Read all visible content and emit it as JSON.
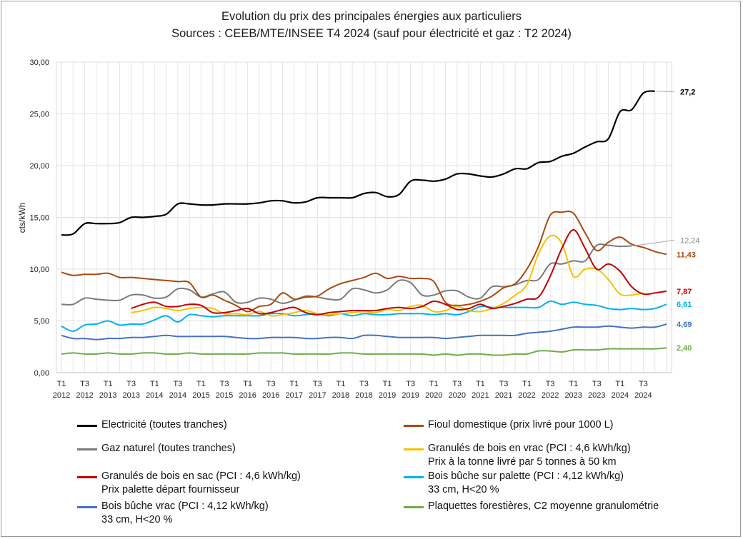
{
  "title_line1": "Evolution du prix des principales énergies aux particuliers",
  "title_line2": "Sources : CEEB/MTE/INSEE T4 2024 (sauf pour électricité et gaz : T2 2024)",
  "chart_data": {
    "type": "line",
    "ylabel": "cts/kWh",
    "ylim": [
      0,
      30
    ],
    "yticks": [
      "0,00",
      "5,00",
      "10,00",
      "15,00",
      "20,00",
      "25,00",
      "30,00"
    ],
    "grid": true,
    "x_tick_labels": [
      {
        "q": "T1",
        "y": "2012"
      },
      {
        "q": "T3",
        "y": "2012"
      },
      {
        "q": "T1",
        "y": "2013"
      },
      {
        "q": "T3",
        "y": "2013"
      },
      {
        "q": "T1",
        "y": "2014"
      },
      {
        "q": "T3",
        "y": "2014"
      },
      {
        "q": "T1",
        "y": "2015"
      },
      {
        "q": "T3",
        "y": "2015"
      },
      {
        "q": "T1",
        "y": "2016"
      },
      {
        "q": "T3",
        "y": "2016"
      },
      {
        "q": "T1",
        "y": "2017"
      },
      {
        "q": "T3",
        "y": "2017"
      },
      {
        "q": "T1",
        "y": "2018"
      },
      {
        "q": "T3",
        "y": "2018"
      },
      {
        "q": "T1",
        "y": "2019"
      },
      {
        "q": "T3",
        "y": "2019"
      },
      {
        "q": "T1",
        "y": "2020"
      },
      {
        "q": "T3",
        "y": "2020"
      },
      {
        "q": "T1",
        "y": "2021"
      },
      {
        "q": "T3",
        "y": "2021"
      },
      {
        "q": "T1",
        "y": "2022"
      },
      {
        "q": "T3",
        "y": "2022"
      },
      {
        "q": "T1",
        "y": "2023"
      },
      {
        "q": "T3",
        "y": "2023"
      },
      {
        "q": "T1",
        "y": "2024"
      },
      {
        "q": "T3",
        "y": "2024"
      }
    ],
    "series": [
      {
        "name": "Electricité (toutes tranches)",
        "color": "#000000",
        "end_label": "27,2",
        "label_color": "#000000",
        "leader": true,
        "start": 0,
        "values": [
          13.3,
          13.4,
          14.4,
          14.4,
          14.4,
          14.5,
          15.0,
          15.0,
          15.1,
          15.3,
          16.3,
          16.3,
          16.2,
          16.2,
          16.3,
          16.3,
          16.3,
          16.4,
          16.6,
          16.6,
          16.4,
          16.5,
          16.9,
          16.9,
          16.9,
          16.9,
          17.3,
          17.4,
          17.0,
          17.2,
          18.5,
          18.6,
          18.5,
          18.7,
          19.2,
          19.2,
          19.0,
          18.9,
          19.2,
          19.7,
          19.7,
          20.3,
          20.4,
          20.9,
          21.2,
          21.8,
          22.3,
          22.6,
          25.2,
          25.4,
          27.0,
          27.2
        ]
      },
      {
        "name": "Fioul domestique (prix livré pour 1000 L)",
        "color": "#a84a10",
        "end_label": "11,43",
        "label_color": "#a84a10",
        "leader": false,
        "start": 0,
        "values": [
          9.7,
          9.4,
          9.5,
          9.5,
          9.6,
          9.2,
          9.2,
          9.1,
          9.0,
          8.9,
          8.8,
          8.7,
          7.3,
          7.5,
          7.0,
          6.5,
          5.9,
          6.4,
          6.6,
          7.7,
          7.1,
          7.3,
          7.4,
          8.1,
          8.6,
          8.9,
          9.2,
          9.6,
          9.1,
          9.3,
          9.1,
          9.1,
          8.8,
          6.8,
          6.5,
          6.6,
          6.9,
          7.4,
          8.2,
          8.6,
          10.0,
          12.2,
          15.2,
          15.5,
          15.4,
          13.5,
          11.8,
          12.6,
          13.1,
          12.4,
          12.1,
          11.7,
          11.43
        ]
      },
      {
        "name": "Gaz naturel (toutes tranches)",
        "color": "#7a7a7a",
        "end_label": "12,24",
        "label_color": "#8a8a8a",
        "leader": true,
        "start": 0,
        "values": [
          6.6,
          6.6,
          7.2,
          7.1,
          7.0,
          7.0,
          7.5,
          7.5,
          7.2,
          7.3,
          8.1,
          8.0,
          7.3,
          7.6,
          7.8,
          6.8,
          6.8,
          7.2,
          7.1,
          6.7,
          7.0,
          7.4,
          7.3,
          7.1,
          7.1,
          8.1,
          8.0,
          7.7,
          8.0,
          8.9,
          8.7,
          7.5,
          7.5,
          7.9,
          7.9,
          7.3,
          7.2,
          8.3,
          8.3,
          8.5,
          8.9,
          9.0,
          10.5,
          10.5,
          10.8,
          10.8,
          12.3,
          12.3,
          12.2,
          12.24
        ]
      },
      {
        "name": "Granulés de bois en vrac (PCI : 4,6 kWh/kg)",
        "name2": "Prix à la tonne livré par 5 tonnes à 50 km",
        "color": "#f5c200",
        "end_label": "",
        "label_color": "#f5c200",
        "leader": false,
        "start": 6,
        "values": [
          5.8,
          6.0,
          6.3,
          6.2,
          6.0,
          6.2,
          6.3,
          6.2,
          5.7,
          5.7,
          5.6,
          5.9,
          5.5,
          5.6,
          5.8,
          6.0,
          5.7,
          5.6,
          5.7,
          5.8,
          5.9,
          5.8,
          6.1,
          6.0,
          6.4,
          6.5,
          5.9,
          6.0,
          6.4,
          6.0,
          5.9,
          6.2,
          6.7,
          7.5,
          8.5,
          11.5,
          13.2,
          12.5,
          9.3,
          10.0,
          10.0,
          9.0,
          7.6,
          7.5,
          7.7
        ]
      },
      {
        "name": "Granulés de bois en sac (PCI : 4,6 kWh/kg)",
        "name2": "Prix palette départ fournisseur",
        "color": "#c00000",
        "end_label": "7,87",
        "label_color": "#c00000",
        "leader": false,
        "start": 6,
        "values": [
          6.2,
          6.6,
          6.8,
          6.4,
          6.4,
          6.6,
          6.5,
          5.8,
          5.8,
          6.0,
          6.2,
          5.7,
          5.8,
          6.1,
          6.3,
          5.8,
          5.6,
          5.8,
          5.9,
          6.0,
          6.0,
          6.0,
          6.2,
          6.3,
          6.2,
          6.4,
          6.9,
          6.6,
          6.1,
          6.2,
          6.6,
          6.2,
          6.4,
          6.7,
          7.1,
          7.3,
          9.3,
          12.0,
          13.8,
          12.0,
          10.0,
          10.5,
          9.8,
          8.3,
          7.6,
          7.7,
          7.87
        ]
      },
      {
        "name": "Bois bûche sur palette (PCI : 4,12 kWh/kg)",
        "name2": "33 cm, H<20 %",
        "color": "#00b0f0",
        "end_label": "6,61",
        "label_color": "#00b0f0",
        "leader": false,
        "start": 0,
        "values": [
          4.5,
          4.0,
          4.6,
          4.7,
          5.0,
          4.6,
          4.7,
          4.7,
          5.1,
          5.5,
          4.9,
          5.6,
          5.5,
          5.4,
          5.5,
          5.5,
          5.5,
          5.5,
          5.7,
          5.7,
          5.5,
          5.6,
          5.7,
          5.5,
          5.7,
          5.5,
          5.7,
          5.6,
          5.6,
          5.7,
          5.7,
          5.7,
          5.6,
          5.7,
          5.6,
          5.9,
          6.4,
          6.3,
          6.3,
          6.3,
          6.3,
          6.3,
          6.9,
          6.6,
          6.8,
          6.6,
          6.5,
          6.2,
          6.1,
          6.2,
          6.1,
          6.2,
          6.61
        ]
      },
      {
        "name": "Bois bûche vrac (PCI : 4,12 kWh/kg)",
        "name2": "33 cm, H<20 %",
        "color": "#4472c4",
        "end_label": "4,69",
        "label_color": "#4472c4",
        "leader": false,
        "start": 0,
        "values": [
          3.6,
          3.3,
          3.3,
          3.2,
          3.3,
          3.3,
          3.4,
          3.4,
          3.5,
          3.6,
          3.5,
          3.5,
          3.5,
          3.5,
          3.5,
          3.4,
          3.3,
          3.3,
          3.4,
          3.4,
          3.4,
          3.3,
          3.3,
          3.4,
          3.4,
          3.3,
          3.6,
          3.6,
          3.5,
          3.4,
          3.4,
          3.4,
          3.4,
          3.3,
          3.4,
          3.5,
          3.6,
          3.6,
          3.6,
          3.6,
          3.8,
          3.9,
          4.0,
          4.2,
          4.4,
          4.4,
          4.4,
          4.5,
          4.4,
          4.3,
          4.4,
          4.4,
          4.69
        ]
      },
      {
        "name": "Plaquettes forestières, C2 moyenne granulométrie",
        "color": "#70ad47",
        "end_label": "2,40",
        "label_color": "#70ad47",
        "leader": false,
        "start": 0,
        "values": [
          1.8,
          1.9,
          1.8,
          1.8,
          1.9,
          1.8,
          1.8,
          1.9,
          1.9,
          1.8,
          1.8,
          1.9,
          1.8,
          1.8,
          1.8,
          1.8,
          1.8,
          1.9,
          1.9,
          1.9,
          1.8,
          1.8,
          1.8,
          1.8,
          1.9,
          1.9,
          1.8,
          1.8,
          1.8,
          1.8,
          1.8,
          1.8,
          1.7,
          1.8,
          1.7,
          1.8,
          1.8,
          1.7,
          1.7,
          1.8,
          1.8,
          2.1,
          2.1,
          2.0,
          2.2,
          2.2,
          2.2,
          2.3,
          2.3,
          2.3,
          2.3,
          2.3,
          2.4
        ]
      }
    ]
  },
  "legend": {
    "left": [
      {
        "series_index": 0,
        "label": "Electricité (toutes tranches)"
      },
      {
        "series_index": 2,
        "label": "Gaz naturel (toutes tranches)"
      },
      {
        "series_index": 4,
        "label": "Granulés de bois en sac (PCI : 4,6 kWh/kg)",
        "sub": "Prix palette départ fournisseur"
      },
      {
        "series_index": 6,
        "label": "Bois bûche vrac (PCI : 4,12 kWh/kg)",
        "sub": "33 cm, H<20 %"
      }
    ],
    "right": [
      {
        "series_index": 1,
        "label": "Fioul domestique (prix livré pour 1000 L)"
      },
      {
        "series_index": 3,
        "label": "Granulés de bois en vrac (PCI : 4,6 kWh/kg)",
        "sub": "Prix à la tonne livré par 5 tonnes à 50 km"
      },
      {
        "series_index": 5,
        "label": "Bois bûche sur palette (PCI : 4,12 kWh/kg)",
        "sub": "33 cm, H<20 %"
      },
      {
        "series_index": 7,
        "label": "Plaquettes forestières, C2 moyenne granulométrie"
      }
    ]
  }
}
